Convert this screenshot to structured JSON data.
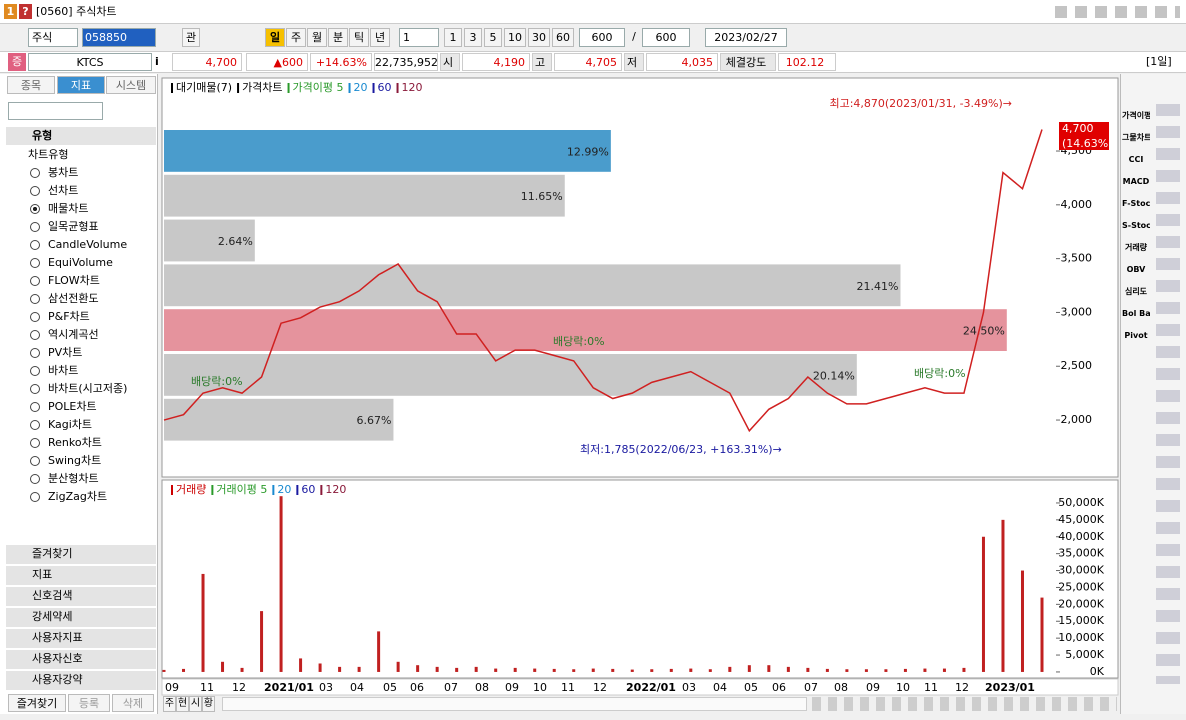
{
  "window": {
    "title": "[0560] 주식차트",
    "icons": [
      "1",
      "?"
    ]
  },
  "toolbar": {
    "market": "주식",
    "code": "058850",
    "button": "관",
    "periods": [
      "일",
      "주",
      "월",
      "분",
      "틱",
      "년"
    ],
    "interval": "1",
    "intervals": [
      "1",
      "3",
      "5",
      "10",
      "30",
      "60"
    ],
    "count": "600",
    "separator": "/",
    "max_count": "600",
    "date": "2023/02/27"
  },
  "quote": {
    "badge": "증",
    "name": "KTCS",
    "info": "i",
    "price": "4,700",
    "change": "▲600",
    "change_pct": "+14.63%",
    "volume": "22,735,952",
    "open_label": "시",
    "open": "4,190",
    "high_label": "고",
    "high": "4,705",
    "low_label": "저",
    "low": "4,035",
    "strength_label": "체결강도",
    "strength": "102.12",
    "period": "[1일]"
  },
  "sidebar": {
    "tabs": [
      "종목",
      "지표",
      "시스템"
    ],
    "section": "유형",
    "tree_root": "차트유형",
    "chart_types": [
      "봉차트",
      "선차트",
      "매물차트",
      "일목균형표",
      "CandleVolume",
      "EquiVolume",
      "FLOW차트",
      "삼선전환도",
      "P&F차트",
      "역시계곡선",
      "PV차트",
      "바차트",
      "바차트(시고저종)",
      "POLE차트",
      "Kagi차트",
      "Renko차트",
      "Swing차트",
      "분산형차트",
      "ZigZag차트"
    ],
    "selected": "매물차트",
    "groups": [
      "즐겨찾기",
      "지표",
      "신호검색",
      "강세약세",
      "사용자지표",
      "사용자신호",
      "사용자강약"
    ],
    "bottom_tabs": [
      "즐겨찾기",
      "등록",
      "삭제"
    ]
  },
  "chart_data": [
    {
      "type": "line",
      "legend": [
        {
          "name": "대기매물(7)",
          "color": "#000"
        },
        {
          "name": "가격차트",
          "color": "#000"
        },
        {
          "name": "가격이평 5",
          "color": "#2a9a2a"
        },
        {
          "name": "20",
          "color": "#1a8ad0"
        },
        {
          "name": "60",
          "color": "#1a1aa0"
        },
        {
          "name": "120",
          "color": "#8a1a3a"
        }
      ],
      "series": [
        {
          "name": "가격차트",
          "color": "#d02020",
          "values": [
            2000,
            2050,
            2250,
            2300,
            2250,
            2400,
            2900,
            2950,
            3050,
            3100,
            3200,
            3350,
            3450,
            3200,
            3100,
            2800,
            2800,
            2550,
            2650,
            2650,
            2600,
            2550,
            2300,
            2200,
            2250,
            2350,
            2400,
            2450,
            2350,
            2250,
            1900,
            2100,
            2200,
            2400,
            2250,
            2150,
            2150,
            2200,
            2250,
            2300,
            2250,
            2250,
            3000,
            4300,
            4150,
            4700
          ]
        }
      ],
      "volume_profile": {
        "name": "대기매물(7)",
        "values": [
          12.99,
          11.65,
          2.64,
          21.41,
          24.5,
          20.14,
          6.67
        ],
        "value_labels": [
          "12.99%",
          "11.65%",
          "2.64%",
          "21.41%",
          "24.50%",
          "20.14%",
          "6.67%"
        ],
        "colors": [
          "#4a9ccc",
          "#c8c8c8",
          "#c8c8c8",
          "#c8c8c8",
          "#e5939d",
          "#c8c8c8",
          "#c8c8c8"
        ]
      },
      "annotations": {
        "high": "최고:4,870(2023/01/31, -3.49%)→",
        "low": "최저:1,785(2022/06/23, +163.31%)→",
        "dividends": [
          "배당락:0%",
          "배당락:0%",
          "배당락:0%"
        ],
        "last_price": "4,700",
        "last_change": "(14.63%)"
      },
      "ylim": [
        1480,
        5160
      ],
      "yticks": [
        {
          "value": 2000,
          "label": "2,000"
        },
        {
          "value": 2500,
          "label": "2,500"
        },
        {
          "value": 3000,
          "label": "3,000"
        },
        {
          "value": 3500,
          "label": "3,500"
        },
        {
          "value": 4000,
          "label": "4,000"
        },
        {
          "value": 4500,
          "label": "4,500"
        }
      ]
    },
    {
      "type": "bar",
      "legend": [
        {
          "name": "거래량",
          "color": "#c00"
        },
        {
          "name": "거래이평 5",
          "color": "#2a9a2a"
        },
        {
          "name": "20",
          "color": "#1a8ad0"
        },
        {
          "name": "60",
          "color": "#1a1aa0"
        },
        {
          "name": "120",
          "color": "#8a1a3a"
        }
      ],
      "series": [
        {
          "name": "거래량",
          "color": "#c02020",
          "values": [
            600,
            900,
            29000,
            3000,
            1200,
            18000,
            52000,
            4000,
            2500,
            1500,
            1500,
            12000,
            3000,
            2000,
            1500,
            1200,
            1500,
            1000,
            1200,
            1000,
            900,
            800,
            1000,
            900,
            700,
            800,
            900,
            1000,
            800,
            1500,
            2000,
            2000,
            1500,
            1200,
            900,
            800,
            800,
            800,
            900,
            1000,
            1000,
            1200,
            40000,
            45000,
            30000,
            22000
          ]
        }
      ],
      "ylim": [
        -1200,
        56200
      ],
      "yticks": [
        {
          "value": 0,
          "label": "0K"
        },
        {
          "value": 5000,
          "label": "5,000K"
        },
        {
          "value": 10000,
          "label": "10,000K"
        },
        {
          "value": 15000,
          "label": "15,000K"
        },
        {
          "value": 20000,
          "label": "20,000K"
        },
        {
          "value": 25000,
          "label": "25,000K"
        },
        {
          "value": 30000,
          "label": "30,000K"
        },
        {
          "value": 35000,
          "label": "35,000K"
        },
        {
          "value": 40000,
          "label": "40,000K"
        },
        {
          "value": 45000,
          "label": "45,000K"
        },
        {
          "value": 50000,
          "label": "50,000K"
        }
      ],
      "x_labels": [
        "09",
        "11",
        "12",
        "2021/01",
        "03",
        "04",
        "05",
        "06",
        "07",
        "08",
        "09",
        "10",
        "11",
        "12",
        "2022/01",
        "03",
        "04",
        "05",
        "06",
        "07",
        "08",
        "09",
        "10",
        "11",
        "12",
        "2023/01"
      ]
    }
  ],
  "right_toolbar": [
    "가격이평",
    "그물차트",
    "CCI",
    "MACD",
    "F-Stoc",
    "S-Stoc",
    "거래량",
    "OBV",
    "심리도",
    "Bol Band",
    "Pivot"
  ],
  "chart_tabs": [
    "주",
    "현",
    "시",
    "황"
  ]
}
